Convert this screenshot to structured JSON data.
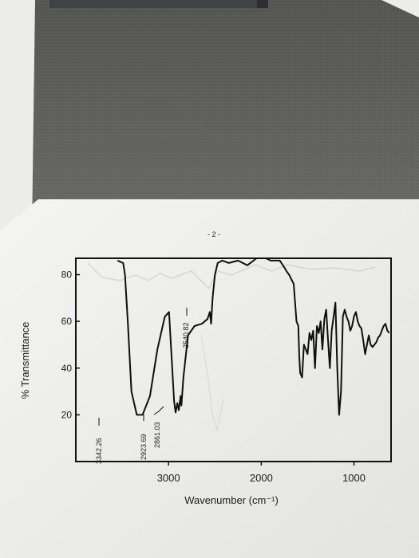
{
  "page": {
    "page_number_label": "- 2 -"
  },
  "chart_data": {
    "type": "line",
    "title": "",
    "xlabel": "Wavenumber (cm⁻¹)",
    "ylabel": "% Transmittance",
    "x_reversed": true,
    "xlim": [
      4000,
      600
    ],
    "ylim": [
      0,
      87
    ],
    "x_ticks": [
      3000,
      2000,
      1000
    ],
    "x_tick_labels": [
      "3000",
      "2000",
      "1000"
    ],
    "y_ticks": [
      20,
      40,
      60,
      80
    ],
    "y_tick_labels": [
      "20",
      "40",
      "60",
      "80"
    ],
    "grid": false,
    "legend": "none",
    "series": [
      {
        "x": [
          3550,
          3490,
          3470,
          3440,
          3400,
          3342,
          3280,
          3200,
          3120,
          3040,
          2995,
          2960,
          2940,
          2924,
          2905,
          2890,
          2870,
          2861,
          2840,
          2790,
          2720,
          2640,
          2580,
          2555,
          2541,
          2525,
          2500,
          2470,
          2420,
          2350,
          2250,
          2150,
          2050,
          1950,
          1900,
          1800,
          1750,
          1720,
          1700,
          1650,
          1620,
          1600,
          1590,
          1580,
          1560,
          1540,
          1500,
          1480,
          1460,
          1440,
          1420,
          1400,
          1380,
          1360,
          1340,
          1320,
          1300,
          1280,
          1260,
          1240,
          1220,
          1200,
          1180,
          1160,
          1140,
          1120,
          1100,
          1080,
          1060,
          1040,
          1020,
          1000,
          980,
          960,
          940,
          920,
          900,
          880,
          860,
          840,
          820,
          800,
          780,
          760,
          740,
          720,
          700,
          680,
          660,
          640,
          620
        ],
        "y": [
          86,
          85,
          80,
          60,
          30,
          20,
          20,
          28,
          48,
          62,
          64,
          40,
          26,
          21,
          25,
          22,
          28,
          24,
          36,
          54,
          58,
          59,
          61,
          64,
          59,
          70,
          80,
          85,
          86,
          85,
          86,
          84,
          87,
          87,
          86,
          86,
          83,
          81,
          80,
          76,
          60,
          58,
          45,
          38,
          36,
          50,
          46,
          55,
          52,
          56,
          40,
          58,
          55,
          60,
          48,
          61,
          65,
          52,
          40,
          56,
          62,
          68,
          40,
          20,
          30,
          62,
          65,
          62,
          60,
          56,
          58,
          62,
          64,
          60,
          58,
          57,
          52,
          46,
          50,
          54,
          50,
          49,
          50,
          51,
          53,
          54,
          56,
          58,
          59,
          56,
          55
        ]
      }
    ],
    "annotations": [
      "3342.26",
      "2923.69",
      "2861.03",
      "2540.82"
    ]
  }
}
